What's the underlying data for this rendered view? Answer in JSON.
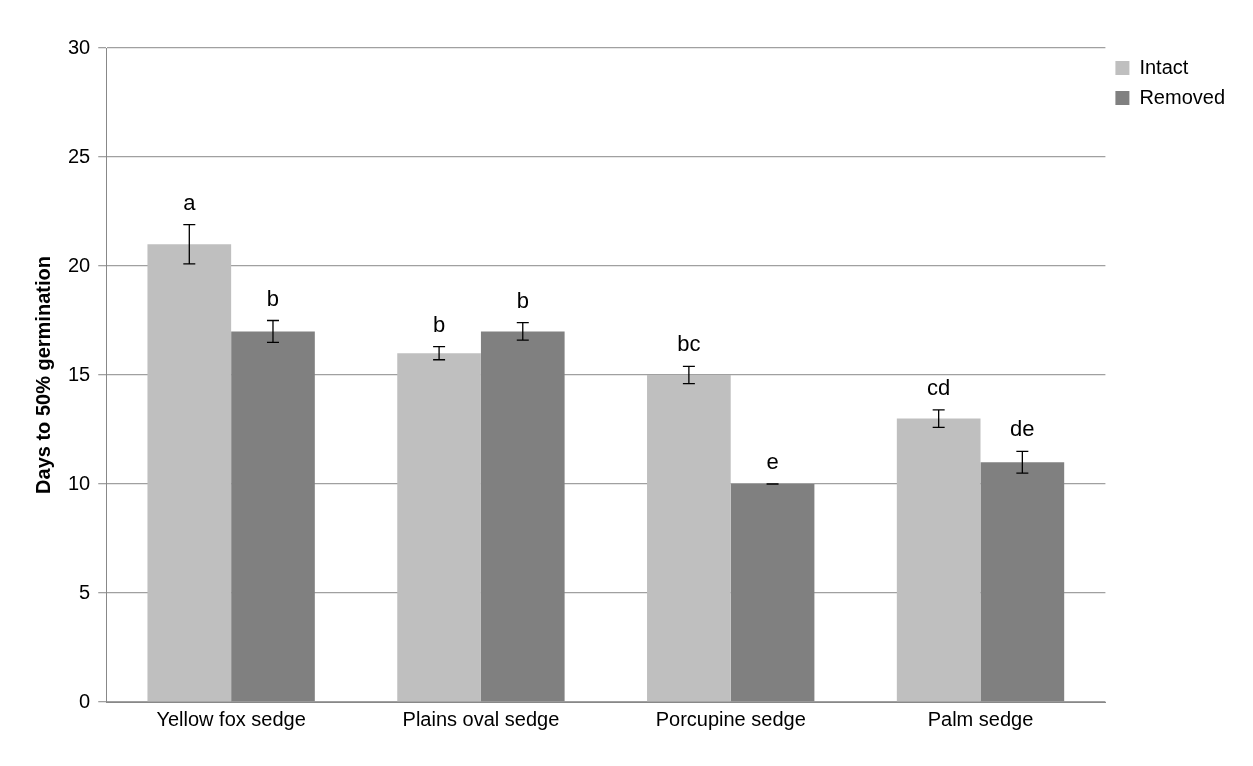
{
  "chart_data": {
    "type": "bar",
    "ylabel": "Days to 50% germination",
    "categories": [
      "Yellow fox sedge",
      "Plains oval sedge",
      "Porcupine sedge",
      "Palm sedge"
    ],
    "series": [
      {
        "name": "Intact",
        "color": "#bfbfbf",
        "values": [
          21,
          16,
          15,
          13
        ],
        "errors": [
          0.9,
          0.3,
          0.4,
          0.4
        ],
        "value_labels": [
          "a",
          "b",
          "bc",
          "cd"
        ]
      },
      {
        "name": "Removed",
        "color": "#808080",
        "values": [
          17,
          17,
          10,
          11
        ],
        "errors": [
          0.5,
          0.4,
          0,
          0.5
        ],
        "value_labels": [
          "b",
          "b",
          "e",
          "de"
        ]
      }
    ],
    "ylim": [
      0,
      30
    ],
    "yticks": [
      0,
      5,
      10,
      15,
      20,
      25,
      30
    ],
    "grid": "y",
    "legend": "top right"
  }
}
